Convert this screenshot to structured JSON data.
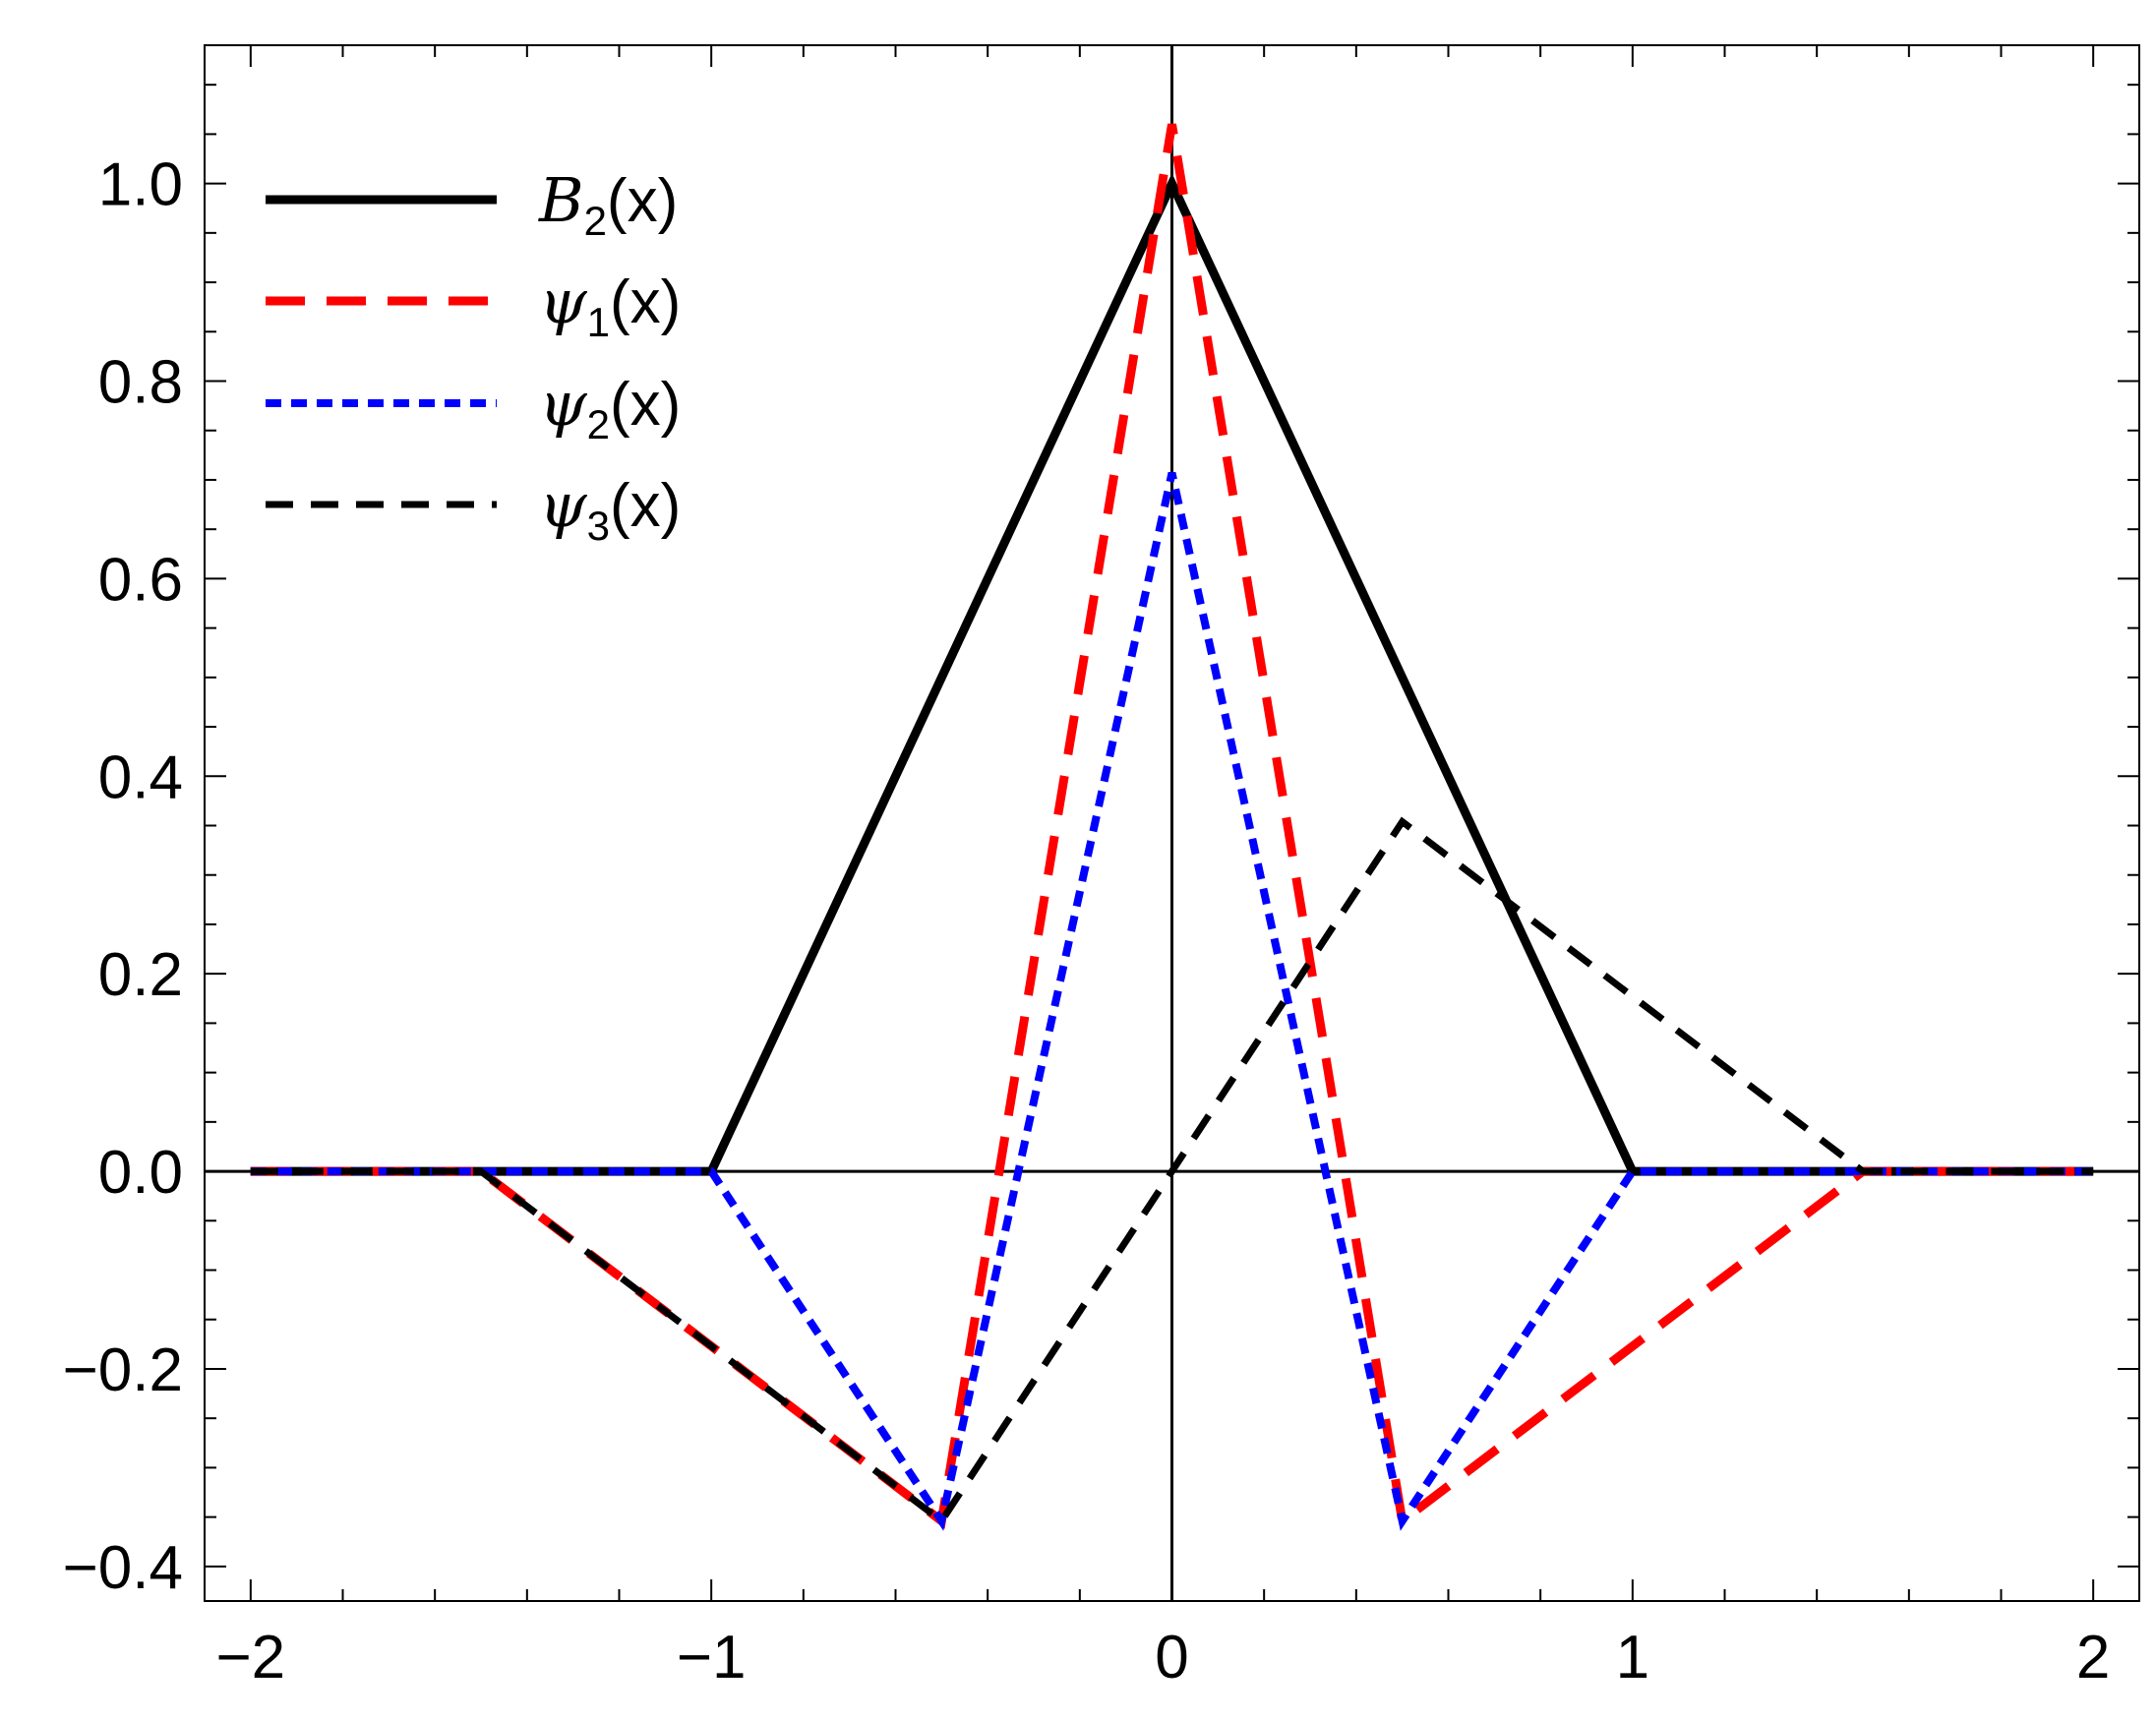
{
  "chart_data": {
    "type": "line",
    "xlim": [
      -2.1,
      2.1
    ],
    "ylim": [
      -0.435,
      1.14
    ],
    "x_ticks": [
      -2,
      -1,
      0,
      1,
      2
    ],
    "x_tick_labels": [
      "−2",
      "−1",
      "0",
      "1",
      "2"
    ],
    "y_ticks": [
      -0.4,
      -0.2,
      0.0,
      0.2,
      0.4,
      0.6,
      0.8,
      1.0
    ],
    "y_tick_labels": [
      "−0.4",
      "−0.2",
      "0.0",
      "0.2",
      "0.4",
      "0.6",
      "0.8",
      "1.0"
    ],
    "grid": false,
    "legend_position": "top-left",
    "series": [
      {
        "legend": {
          "symbol": "B",
          "sub": "2",
          "suffix": "(x)"
        },
        "color": "#000000",
        "style": "solid",
        "x": [
          -2,
          -1,
          0,
          1,
          2
        ],
        "y": [
          0,
          0,
          1.0,
          0,
          0
        ]
      },
      {
        "legend": {
          "symbol": "ψ",
          "sub": "1",
          "suffix": "(x)"
        },
        "color": "#ff0000",
        "style": "long-dash",
        "x": [
          -2,
          -1.5,
          -0.5,
          0,
          0.5,
          1.5,
          2
        ],
        "y": [
          0,
          0,
          -0.354,
          1.06,
          -0.354,
          0,
          0
        ]
      },
      {
        "legend": {
          "symbol": "ψ",
          "sub": "2",
          "suffix": "(x)"
        },
        "color": "#0000ff",
        "style": "dotted",
        "x": [
          -2,
          -1,
          -0.5,
          0,
          0.5,
          1,
          2
        ],
        "y": [
          0,
          0,
          -0.354,
          0.707,
          -0.354,
          0,
          0
        ]
      },
      {
        "legend": {
          "symbol": "ψ",
          "sub": "3",
          "suffix": "(x)"
        },
        "color": "#000000",
        "style": "dashed",
        "x": [
          -2,
          -1.5,
          -0.5,
          0,
          0.5,
          1.5,
          2
        ],
        "y": [
          0,
          0,
          -0.354,
          0,
          0.354,
          0,
          0
        ]
      }
    ]
  }
}
